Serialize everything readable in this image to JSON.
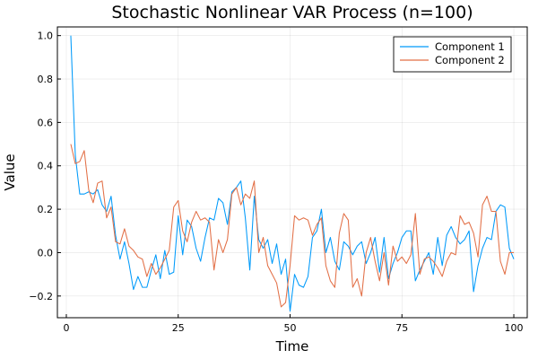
{
  "chart_data": {
    "type": "line",
    "title": "Stochastic Nonlinear VAR Process (n=100)",
    "xlabel": "Time",
    "ylabel": "Value",
    "xlim": [
      -2,
      103
    ],
    "ylim": [
      -0.3,
      1.04
    ],
    "xticks": [
      0,
      25,
      50,
      75,
      100
    ],
    "yticks": [
      -0.2,
      0.0,
      0.2,
      0.4,
      0.6,
      0.8,
      1.0
    ],
    "xtick_labels": [
      "0",
      "25",
      "50",
      "75",
      "100"
    ],
    "ytick_labels": [
      "−0.2",
      "0.0",
      "0.2",
      "0.4",
      "0.6",
      "0.8",
      "1.0"
    ],
    "grid": true,
    "legend_position": "top-right",
    "series": [
      {
        "name": "Component 1",
        "color": "#009AFA",
        "x": [
          1,
          2,
          3,
          4,
          5,
          6,
          7,
          8,
          9,
          10,
          11,
          12,
          13,
          14,
          15,
          16,
          17,
          18,
          19,
          20,
          21,
          22,
          23,
          24,
          25,
          26,
          27,
          28,
          29,
          30,
          31,
          32,
          33,
          34,
          35,
          36,
          37,
          38,
          39,
          40,
          41,
          42,
          43,
          44,
          45,
          46,
          47,
          48,
          49,
          50,
          51,
          52,
          53,
          54,
          55,
          56,
          57,
          58,
          59,
          60,
          61,
          62,
          63,
          64,
          65,
          66,
          67,
          68,
          69,
          70,
          71,
          72,
          73,
          74,
          75,
          76,
          77,
          78,
          79,
          80,
          81,
          82,
          83,
          84,
          85,
          86,
          87,
          88,
          89,
          90,
          91,
          92,
          93,
          94,
          95,
          96,
          97,
          98,
          99,
          100
        ],
        "values": [
          1.0,
          0.45,
          0.27,
          0.27,
          0.28,
          0.27,
          0.29,
          0.22,
          0.19,
          0.26,
          0.08,
          -0.03,
          0.05,
          -0.05,
          -0.17,
          -0.11,
          -0.16,
          -0.16,
          -0.08,
          -0.01,
          -0.12,
          0.01,
          -0.1,
          -0.09,
          0.17,
          -0.01,
          0.15,
          0.12,
          0.02,
          -0.04,
          0.07,
          0.16,
          0.15,
          0.25,
          0.23,
          0.13,
          0.28,
          0.3,
          0.33,
          0.16,
          -0.08,
          0.26,
          0.06,
          0.02,
          0.06,
          -0.05,
          0.04,
          -0.1,
          -0.03,
          -0.27,
          -0.1,
          -0.15,
          -0.16,
          -0.11,
          0.07,
          0.1,
          0.2,
          0.0,
          0.07,
          -0.04,
          -0.08,
          0.05,
          0.03,
          -0.01,
          0.03,
          0.05,
          -0.05,
          0.0,
          0.07,
          -0.09,
          0.07,
          -0.12,
          -0.05,
          0.0,
          0.07,
          0.1,
          0.1,
          -0.13,
          -0.08,
          -0.04,
          0.0,
          -0.1,
          0.07,
          -0.06,
          0.08,
          0.12,
          0.07,
          0.04,
          0.06,
          0.1,
          -0.18,
          -0.06,
          0.02,
          0.07,
          0.06,
          0.19,
          0.22,
          0.21,
          0.02,
          -0.03
        ]
      },
      {
        "name": "Component 2",
        "color": "#E26F46",
        "x": [
          1,
          2,
          3,
          4,
          5,
          6,
          7,
          8,
          9,
          10,
          11,
          12,
          13,
          14,
          15,
          16,
          17,
          18,
          19,
          20,
          21,
          22,
          23,
          24,
          25,
          26,
          27,
          28,
          29,
          30,
          31,
          32,
          33,
          34,
          35,
          36,
          37,
          38,
          39,
          40,
          41,
          42,
          43,
          44,
          45,
          46,
          47,
          48,
          49,
          50,
          51,
          52,
          53,
          54,
          55,
          56,
          57,
          58,
          59,
          60,
          61,
          62,
          63,
          64,
          65,
          66,
          67,
          68,
          69,
          70,
          71,
          72,
          73,
          74,
          75,
          76,
          77,
          78,
          79,
          80,
          81,
          82,
          83,
          84,
          85,
          86,
          87,
          88,
          89,
          90,
          91,
          92,
          93,
          94,
          95,
          96,
          97,
          98,
          99,
          100
        ],
        "values": [
          0.5,
          0.41,
          0.42,
          0.47,
          0.29,
          0.23,
          0.32,
          0.33,
          0.16,
          0.21,
          0.05,
          0.04,
          0.11,
          0.03,
          0.01,
          -0.02,
          -0.03,
          -0.11,
          -0.05,
          -0.1,
          -0.07,
          -0.03,
          0.01,
          0.21,
          0.24,
          0.1,
          0.05,
          0.14,
          0.19,
          0.15,
          0.16,
          0.14,
          -0.08,
          0.06,
          0.0,
          0.06,
          0.27,
          0.3,
          0.22,
          0.27,
          0.25,
          0.33,
          0.0,
          0.07,
          -0.06,
          -0.1,
          -0.14,
          -0.25,
          -0.23,
          -0.06,
          0.17,
          0.15,
          0.16,
          0.15,
          0.08,
          0.13,
          0.16,
          -0.06,
          -0.13,
          -0.16,
          0.09,
          0.18,
          0.15,
          -0.16,
          -0.12,
          -0.2,
          0.0,
          0.07,
          -0.04,
          -0.13,
          0.0,
          -0.15,
          0.03,
          -0.04,
          -0.02,
          -0.05,
          -0.01,
          0.18,
          -0.1,
          -0.03,
          -0.02,
          -0.04,
          -0.07,
          -0.11,
          -0.04,
          0.0,
          -0.01,
          0.17,
          0.13,
          0.14,
          0.09,
          -0.02,
          0.22,
          0.26,
          0.19,
          0.19,
          -0.04,
          -0.1,
          0.0,
          0.0
        ]
      }
    ]
  }
}
